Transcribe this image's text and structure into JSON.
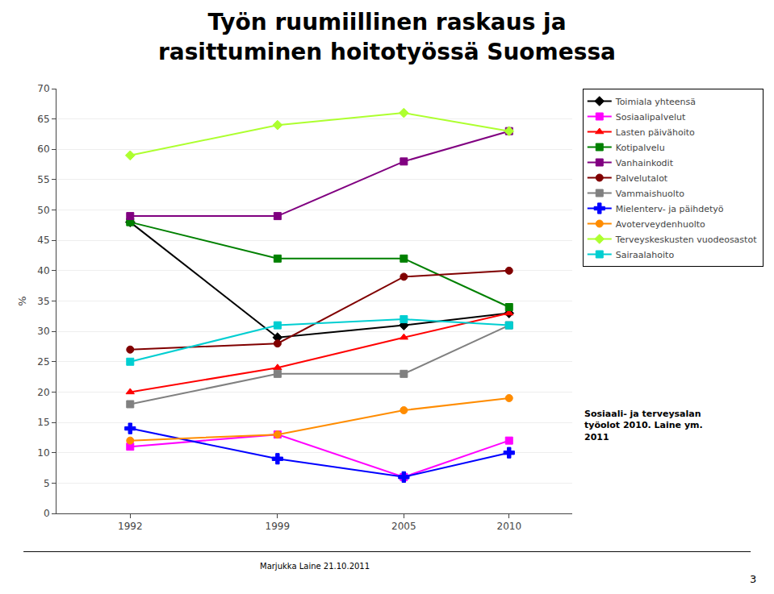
{
  "chart_data": {
    "type": "line",
    "title": "Työn ruumiillinen raskaus ja\nrasittuminen hoitotyössä Suomessa",
    "y_label": "%",
    "x": [
      1992,
      1999,
      2005,
      2010
    ],
    "xlim": [
      1988.5,
      2013
    ],
    "xticks": [
      1992,
      1999,
      2005,
      2010
    ],
    "ylim": [
      0,
      70
    ],
    "yticks": [
      0,
      5,
      10,
      15,
      20,
      25,
      30,
      35,
      40,
      45,
      50,
      55,
      60,
      65,
      70
    ],
    "grid": "y",
    "legend": "right",
    "annotations": [
      "Sosiaali- ja terveysalan\ntyöolot 2010. Laine ym.\n2011",
      "Marjukka Laine 21.10.2011",
      "3"
    ],
    "series": [
      {
        "name": "Toimiala yhteensä",
        "color": "#000000",
        "marker": "diamond",
        "line_style": "solid",
        "values": [
          48,
          29,
          31,
          33
        ]
      },
      {
        "name": "Sosiaalipalvelut",
        "color": "#FF00FF",
        "marker": "square",
        "line_style": "solid",
        "values": [
          11,
          13,
          6,
          12
        ]
      },
      {
        "name": "Lasten päivähoito",
        "color": "#FF0000",
        "marker": "triangle",
        "line_style": "solid",
        "values": [
          20,
          24,
          29,
          33
        ]
      },
      {
        "name": "Kotipalvelu",
        "color": "#008000",
        "marker": "square",
        "line_style": "solid",
        "values": [
          48,
          42,
          42,
          34
        ]
      },
      {
        "name": "Vanhainkodit",
        "color": "#800080",
        "marker": "square",
        "line_style": "solid",
        "values": [
          49,
          49,
          58,
          63
        ]
      },
      {
        "name": "Palvelutalot",
        "color": "#800000",
        "marker": "circle",
        "line_style": "solid",
        "values": [
          27,
          28,
          39,
          40
        ]
      },
      {
        "name": "Vammaishuolto",
        "color": "#808080",
        "marker": "square",
        "line_style": "solid",
        "values": [
          18,
          23,
          23,
          31
        ]
      },
      {
        "name": "Mielenterv- ja päihdetyö",
        "color": "#0000FF",
        "marker": "plus",
        "line_style": "solid",
        "values": [
          14,
          9,
          6,
          10
        ]
      },
      {
        "name": "Avoterveydenhuolto",
        "color": "#FF8C00",
        "marker": "circle",
        "line_style": "solid",
        "values": [
          12,
          13,
          17,
          19
        ]
      },
      {
        "name": "Terveyskeskusten vuodeosastot",
        "color": "#ADFF2F",
        "marker": "diamond",
        "line_style": "solid",
        "values": [
          59,
          64,
          66,
          63
        ]
      },
      {
        "name": "Sairaalahoito",
        "color": "#00CED1",
        "marker": "square",
        "line_style": "solid",
        "values": [
          25,
          31,
          32,
          31
        ]
      }
    ]
  }
}
